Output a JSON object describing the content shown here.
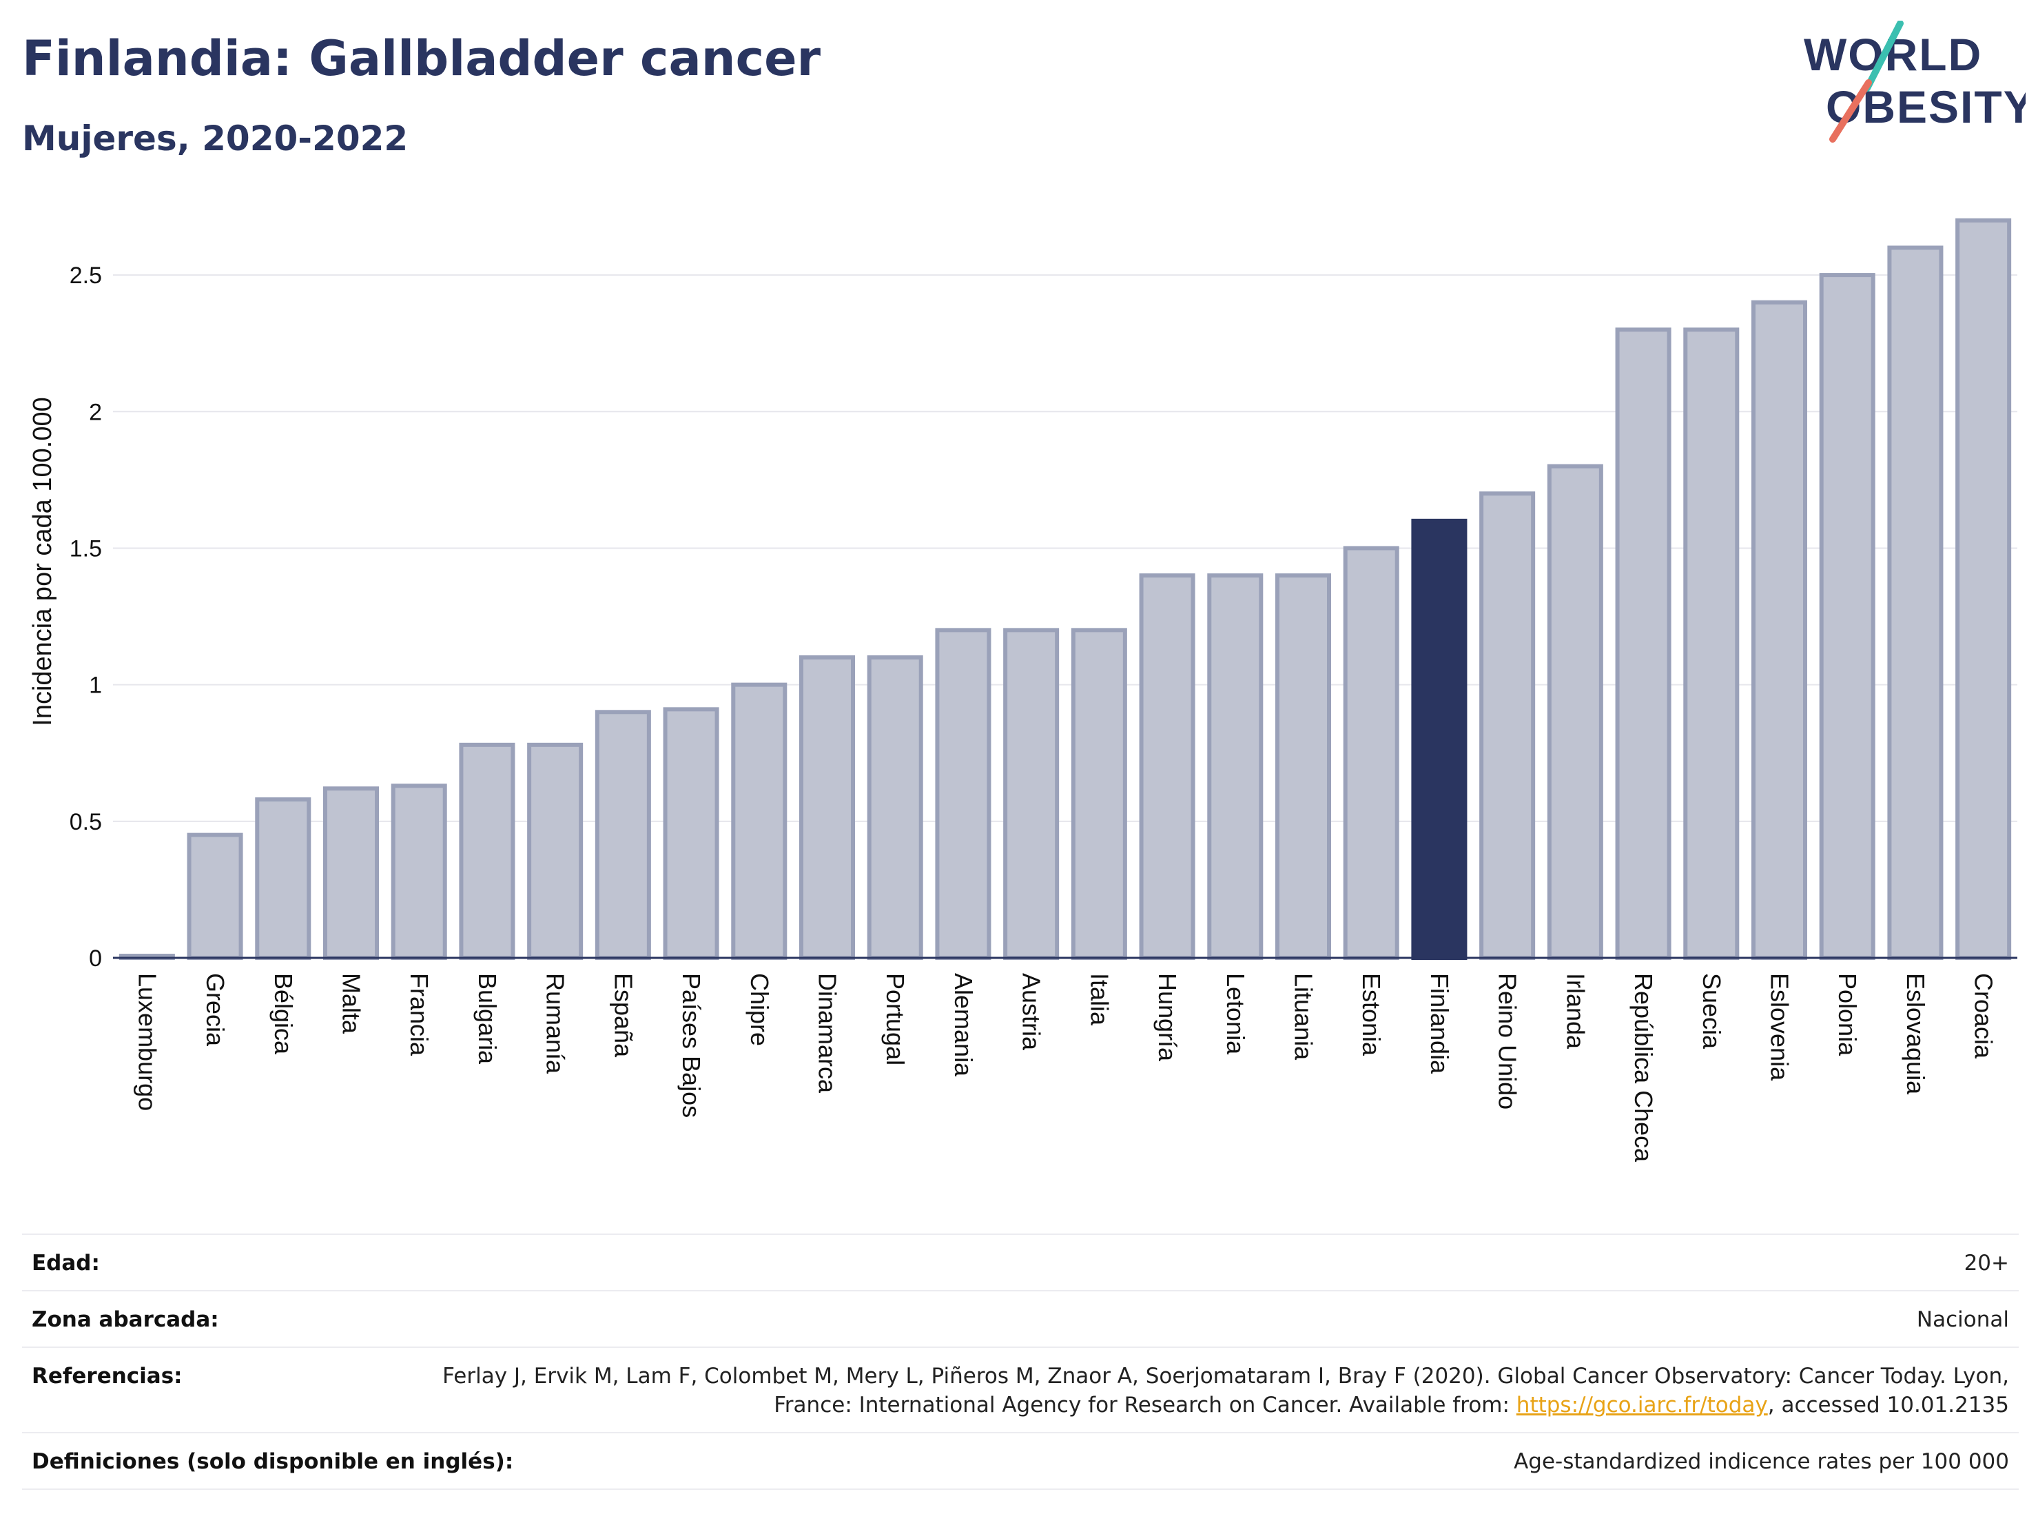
{
  "title": "Finlandia: Gallbladder cancer",
  "subtitle": "Mujeres, 2020-2022",
  "logo": {
    "line1": "WORLD",
    "line2": "OBESITY"
  },
  "colors": {
    "bar": "#bfc3d1",
    "bar_border": "#9aa1b9",
    "highlight": "#2a3560",
    "grid": "#e6e6ec",
    "title": "#2a3560"
  },
  "chart_data": {
    "type": "bar",
    "ylabel": "Incidencia por cada 100.000",
    "xlabel": "",
    "ylim": [
      0,
      2.75
    ],
    "yticks": [
      0,
      0.5,
      1,
      1.5,
      2,
      2.5
    ],
    "ytick_labels": [
      "0",
      "0.5",
      "1",
      "1.5",
      "2",
      "2.5"
    ],
    "categories": [
      "Luxemburgo",
      "Grecia",
      "Bélgica",
      "Malta",
      "Francia",
      "Bulgaria",
      "Rumanía",
      "España",
      "Países Bajos",
      "Chipre",
      "Dinamarca",
      "Portugal",
      "Alemania",
      "Austria",
      "Italia",
      "Hungría",
      "Letonia",
      "Lituania",
      "Estonia",
      "Finlandia",
      "Reino Unido",
      "Irlanda",
      "República Checa",
      "Suecia",
      "Eslovenia",
      "Polonia",
      "Eslovaquia",
      "Croacia"
    ],
    "values": [
      0.0,
      0.45,
      0.58,
      0.62,
      0.63,
      0.78,
      0.78,
      0.9,
      0.91,
      1.0,
      1.1,
      1.1,
      1.2,
      1.2,
      1.2,
      1.4,
      1.4,
      1.4,
      1.5,
      1.6,
      1.7,
      1.8,
      2.3,
      2.3,
      2.4,
      2.5,
      2.6,
      2.7
    ],
    "highlight": "Finlandia",
    "grid": true
  },
  "meta": {
    "edad_label": "Edad:",
    "edad_value": "20+",
    "zona_label": "Zona abarcada:",
    "zona_value": "Nacional",
    "ref_label": "Referencias:",
    "ref_text_before": "Ferlay J, Ervik M, Lam F, Colombet M, Mery L, Piñeros M, Znaor A, Soerjomataram I, Bray F (2020). Global Cancer Observatory: Cancer Today. Lyon, France: International Agency for Research on Cancer. Available from: ",
    "ref_link": "https://gco.iarc.fr/today",
    "ref_text_after": ", accessed 10.01.2135",
    "def_label": "Definiciones (solo disponible en inglés):",
    "def_value": "Age-standardized indicence rates per 100 000"
  }
}
